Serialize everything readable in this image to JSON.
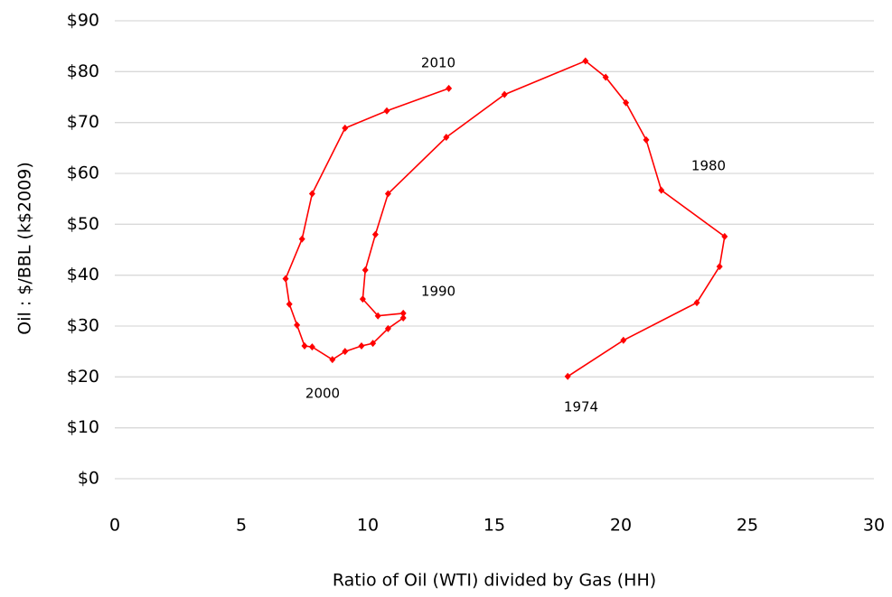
{
  "chart_data": {
    "type": "scatter-line",
    "x_label": "Ratio of Oil (WTI) divided by Gas (HH)",
    "y_label": "Oil : $/BBL (k$2009)",
    "color": "#ff0000",
    "grid": true,
    "xlim": [
      0,
      30
    ],
    "xticks": [
      0,
      5,
      10,
      15,
      20,
      25,
      30
    ],
    "ylim": [
      0,
      90
    ],
    "yticks": [
      {
        "value": 0,
        "label": "$0"
      },
      {
        "value": 10,
        "label": "$10"
      },
      {
        "value": 20,
        "label": "$20"
      },
      {
        "value": 30,
        "label": "$30"
      },
      {
        "value": 40,
        "label": "$40"
      },
      {
        "value": 50,
        "label": "$50"
      },
      {
        "value": 60,
        "label": "$60"
      },
      {
        "value": 70,
        "label": "$70"
      },
      {
        "value": 80,
        "label": "$80"
      },
      {
        "value": 90,
        "label": "$90"
      }
    ],
    "x": [
      17.9,
      20.1,
      23.0,
      23.9,
      24.1,
      21.6,
      21.0,
      20.2,
      19.4,
      18.6,
      15.4,
      13.1,
      10.8,
      10.3,
      9.9,
      9.8,
      10.4,
      11.4,
      11.4,
      10.8,
      10.2,
      9.75,
      9.1,
      8.6,
      7.8,
      7.5,
      7.2,
      6.9,
      6.75,
      7.4,
      7.8,
      9.1,
      10.75,
      13.2
    ],
    "y": [
      20.1,
      27.2,
      34.6,
      41.7,
      47.6,
      56.7,
      66.6,
      73.9,
      78.9,
      82.1,
      75.5,
      67.1,
      56.0,
      48.0,
      41.0,
      35.3,
      32.0,
      32.5,
      31.6,
      29.5,
      26.6,
      26.1,
      25.0,
      23.4,
      25.9,
      26.1,
      30.2,
      34.3,
      39.3,
      47.1,
      56.0,
      68.9,
      72.3,
      76.7
    ],
    "annotations": [
      "1974",
      "1980",
      "1990",
      "2000",
      "2010"
    ]
  }
}
